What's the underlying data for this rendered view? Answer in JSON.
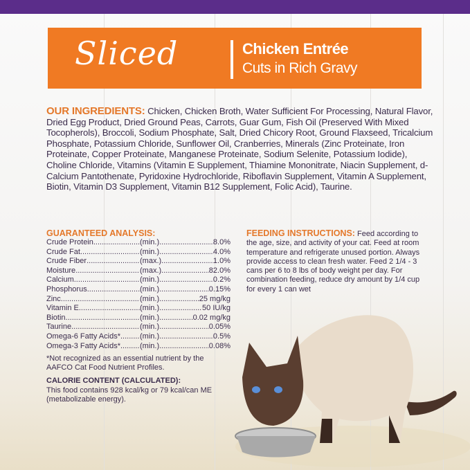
{
  "colors": {
    "brand_purple": "#5b2d8a",
    "banner_orange": "#f07a23",
    "heading_orange": "#e4782a",
    "text": "#3b2c4c"
  },
  "banner": {
    "script": "Sliced",
    "line1": "Chicken Entrée",
    "line2": "Cuts in Rich Gravy"
  },
  "ingredients": {
    "heading": "OUR INGREDIENTS:",
    "text": " Chicken, Chicken Broth, Water Sufficient For Processing, Natural Flavor, Dried Egg Product, Dried Ground Peas, Carrots, Guar Gum, Fish Oil (Preserved With Mixed Tocopherols), Broccoli, Sodium Phosphate, Salt, Dried Chicory Root, Ground Flaxseed, Tricalcium Phosphate, Potassium Chloride, Sunflower Oil, Cranberries, Minerals (Zinc Proteinate, Iron Proteinate, Copper Proteinate, Manganese Proteinate, Sodium Selenite, Potassium Iodide), Choline Chloride, Vitamins (Vitamin E Supplement, Thiamine Mononitrate,  Niacin Supplement, d-Calcium Pantothenate, Pyridoxine Hydrochloride, Riboflavin Supplement, Vitamin A Supplement, Biotin, Vitamin D3 Supplement, Vitamin B12 Supplement, Folic Acid), Taurine."
  },
  "analysis": {
    "heading": "GUARANTEED ANALYSIS:",
    "rows": [
      {
        "name": "Crude Protein",
        "qual": "(min.)",
        "value": "8.0%"
      },
      {
        "name": "Crude Fat",
        "qual": "(min.)",
        "value": "4.0%"
      },
      {
        "name": "Crude Fiber",
        "qual": "(max.)",
        "value": "1.0%"
      },
      {
        "name": "Moisture",
        "qual": "(max.)",
        "value": "82.0%"
      },
      {
        "name": "Calcium",
        "qual": "(min.)",
        "value": "0.2%"
      },
      {
        "name": "Phosphorus",
        "qual": "(min.)",
        "value": "0.15%"
      },
      {
        "name": "Zinc",
        "qual": "(min.)",
        "value": "25 mg/kg"
      },
      {
        "name": "Vitamin E",
        "qual": "(min.)",
        "value": "50 IU/kg"
      },
      {
        "name": "Biotin",
        "qual": "(min.)",
        "value": "0.02 mg/kg"
      },
      {
        "name": "Taurine",
        "qual": "(min.)",
        "value": "0.05%"
      },
      {
        "name": "Omega-6 Fatty Acids*",
        "qual": "(min.)",
        "value": "0.5%"
      },
      {
        "name": "Omega-3 Fatty Acids*",
        "qual": "(min.)",
        "value": "0.08%"
      }
    ],
    "footnote": "*Not recognized as an essential nutrient by the AAFCO Cat Food Nutrient Profiles.",
    "calorie_heading": "CALORIE CONTENT (CALCULATED):",
    "calorie_text": "This food contains 928 kcal/kg or 79 kcal/can ME (metabolizable energy)."
  },
  "feeding": {
    "heading": "FEEDING INSTRUCTIONS:",
    "text": " Feed according to the age, size, and activity of your cat. Feed at room temperature and refrigerate unused portion. Always provide access to clean fresh water. Feed 2 1/4 - 3 cans per 6 to 8 lbs of body weight per day. For combination feeding, reduce dry amount by 1/4 cup for every 1 can wet"
  }
}
